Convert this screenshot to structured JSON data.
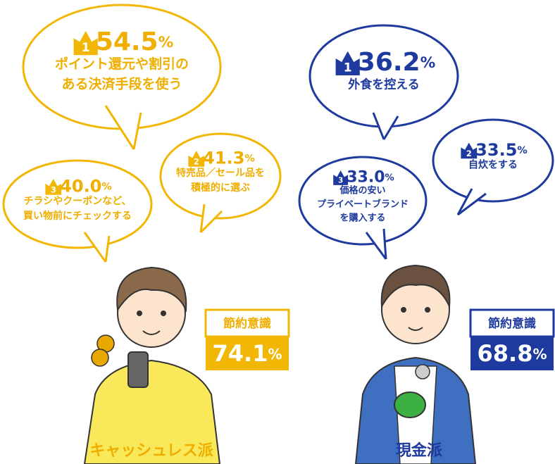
{
  "left": {
    "label": "キャッシュレス派",
    "awareness": {
      "label": "節約意識",
      "value": "74.1",
      "unit": "%"
    },
    "items": [
      {
        "rank": "1",
        "value": "54.5",
        "unit": "%",
        "lines": [
          "ポイント還元や割引の",
          "ある決済手段を使う"
        ]
      },
      {
        "rank": "2",
        "value": "41.3",
        "unit": "%",
        "lines": [
          "特売品／セール品を",
          "積極的に選ぶ"
        ]
      },
      {
        "rank": "3",
        "value": "40.0",
        "unit": "%",
        "lines": [
          "チラシやクーポンなど、",
          "買い物前にチェックする"
        ]
      }
    ]
  },
  "right": {
    "label": "現金派",
    "awareness": {
      "label": "節約意識",
      "value": "68.8",
      "unit": "%"
    },
    "items": [
      {
        "rank": "1",
        "value": "36.2",
        "unit": "%",
        "lines": [
          "外食を控える"
        ]
      },
      {
        "rank": "2",
        "value": "33.5",
        "unit": "%",
        "lines": [
          "自炊をする"
        ]
      },
      {
        "rank": "3",
        "value": "33.0",
        "unit": "%",
        "lines": [
          "価格の安い",
          "プライベートブランド",
          "を購入する"
        ]
      }
    ]
  }
}
